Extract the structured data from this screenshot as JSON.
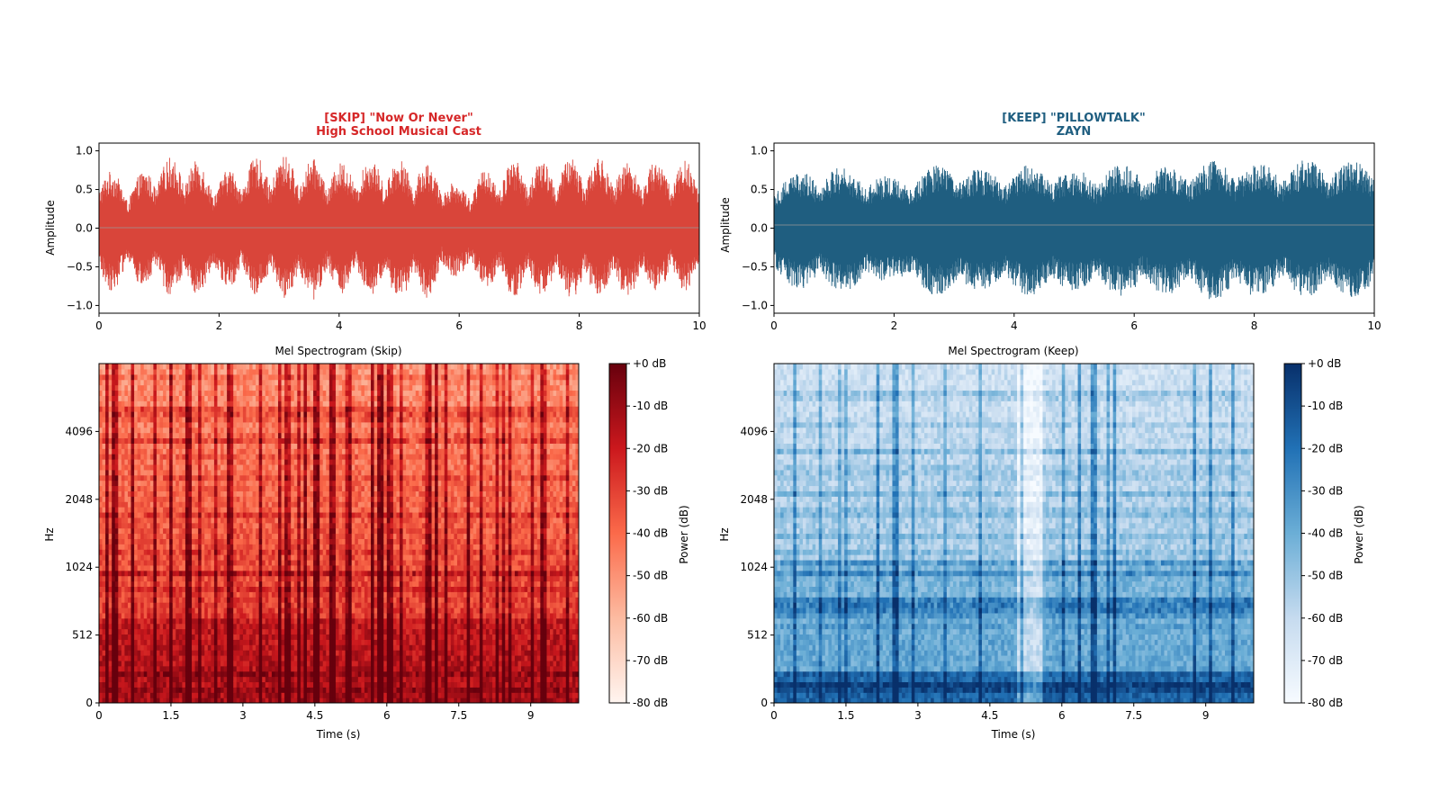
{
  "chart_data": [
    {
      "type": "line",
      "panel": "waveform-skip",
      "title_line1": "[SKIP]  \"Now Or Never\"",
      "title_line2": "High School Musical Cast",
      "title_color": "#d62728",
      "ylabel": "Amplitude",
      "xlim": [
        0,
        10
      ],
      "ylim": [
        -1.1,
        1.1
      ],
      "x_ticks": [
        "0",
        "2",
        "4",
        "6",
        "8",
        "10"
      ],
      "y_ticks": [
        "1.0",
        "0.5",
        "0.0",
        "−0.5",
        "−1.0"
      ],
      "color": "#d9453a",
      "envelope": {
        "t": [
          0,
          0.5,
          1,
          1.5,
          2,
          2.5,
          3,
          3.5,
          4,
          4.5,
          5,
          5.5,
          6,
          6.5,
          7,
          7.5,
          8,
          8.5,
          9,
          9.5,
          10
        ],
        "upper": [
          0.85,
          0.6,
          0.9,
          0.95,
          0.7,
          0.9,
          0.95,
          0.9,
          0.85,
          0.9,
          0.9,
          0.85,
          0.55,
          0.8,
          0.9,
          0.85,
          0.95,
          0.9,
          0.85,
          0.9,
          0.85
        ],
        "lower": [
          -0.9,
          -0.7,
          -0.85,
          -0.9,
          -0.75,
          -0.85,
          -0.9,
          -0.95,
          -0.85,
          -0.9,
          -0.95,
          -0.9,
          -0.6,
          -0.85,
          -0.9,
          -0.9,
          -0.95,
          -0.9,
          -0.9,
          -0.85,
          -0.8
        ]
      }
    },
    {
      "type": "line",
      "panel": "waveform-keep",
      "title_line1": "[KEEP]  \"PILLOWTALK\"",
      "title_line2": "ZAYN",
      "title_color": "#1f5e80",
      "ylabel": "Amplitude",
      "xlim": [
        0,
        10
      ],
      "ylim": [
        -1.1,
        1.1
      ],
      "x_ticks": [
        "0",
        "2",
        "4",
        "6",
        "8",
        "10"
      ],
      "y_ticks": [
        "1.0",
        "0.5",
        "0.0",
        "−0.5",
        "−1.0"
      ],
      "color": "#1f5e80",
      "envelope": {
        "t": [
          0,
          0.5,
          1,
          1.5,
          2,
          2.5,
          3,
          3.5,
          4,
          4.5,
          5,
          5.5,
          6,
          6.5,
          7,
          7.5,
          8,
          8.5,
          9,
          9.5,
          10
        ],
        "upper": [
          0.65,
          0.75,
          0.8,
          0.75,
          0.65,
          0.8,
          0.85,
          0.75,
          0.8,
          0.85,
          0.75,
          0.8,
          0.85,
          0.8,
          0.85,
          0.9,
          0.85,
          0.85,
          0.9,
          0.85,
          0.9
        ],
        "lower": [
          -0.7,
          -0.8,
          -0.85,
          -0.8,
          -0.65,
          -0.85,
          -0.9,
          -0.8,
          -0.85,
          -0.9,
          -0.8,
          -0.85,
          -0.9,
          -0.85,
          -0.9,
          -0.95,
          -0.9,
          -0.85,
          -0.9,
          -0.9,
          -0.95
        ]
      }
    },
    {
      "type": "heatmap",
      "panel": "spectrogram-skip",
      "title": "Mel Spectrogram (Skip)",
      "xlabel": "Time (s)",
      "ylabel": "Hz",
      "xlim": [
        0,
        10
      ],
      "x_ticks": [
        "0",
        "1.5",
        "3",
        "4.5",
        "6",
        "7.5",
        "9"
      ],
      "y_ticks": [
        "0",
        "512",
        "1024",
        "2048",
        "4096"
      ],
      "colormap": "Reds",
      "colorbar": {
        "label": "Power (dB)",
        "ticks": [
          "+0 dB",
          "-10 dB",
          "-20 dB",
          "-30 dB",
          "-40 dB",
          "-50 dB",
          "-60 dB",
          "-70 dB",
          "-80 dB"
        ],
        "range": [
          -80,
          0
        ]
      }
    },
    {
      "type": "heatmap",
      "panel": "spectrogram-keep",
      "title": "Mel Spectrogram (Keep)",
      "xlabel": "Time (s)",
      "ylabel": "Hz",
      "xlim": [
        0,
        10
      ],
      "x_ticks": [
        "0",
        "1.5",
        "3",
        "4.5",
        "6",
        "7.5",
        "9"
      ],
      "y_ticks": [
        "0",
        "512",
        "1024",
        "2048",
        "4096"
      ],
      "colormap": "Blues",
      "colorbar": {
        "label": "Power (dB)",
        "ticks": [
          "+0 dB",
          "-10 dB",
          "-20 dB",
          "-30 dB",
          "-40 dB",
          "-50 dB",
          "-60 dB",
          "-70 dB",
          "-80 dB"
        ],
        "range": [
          -80,
          0
        ]
      }
    }
  ]
}
